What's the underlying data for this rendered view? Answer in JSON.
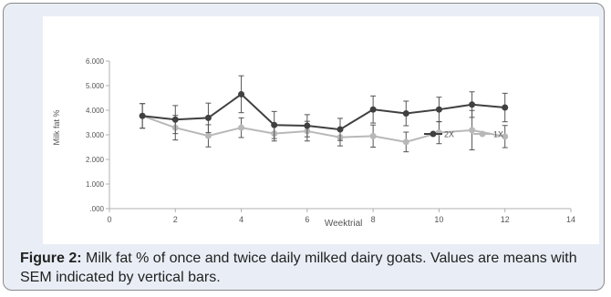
{
  "chart_data": {
    "type": "line",
    "ylabel": "Milk fat %",
    "xlabel": "Weektrial",
    "xlim": [
      0,
      14
    ],
    "ylim": [
      0,
      6
    ],
    "x_ticks": [
      0,
      2,
      4,
      6,
      8,
      10,
      12,
      14
    ],
    "y_ticks": [
      ".000",
      "1.000",
      "2.000",
      "3.000",
      "4.000",
      "5.000",
      "6.000"
    ],
    "grid": false,
    "legend_position": "right",
    "x": [
      1,
      2,
      3,
      4,
      5,
      6,
      7,
      8,
      9,
      10,
      11,
      12
    ],
    "series": [
      {
        "name": "2X",
        "color": "#404040",
        "values": [
          3.77,
          3.62,
          3.69,
          4.65,
          3.4,
          3.37,
          3.22,
          4.03,
          3.87,
          4.03,
          4.23,
          4.11
        ],
        "error": [
          0.5,
          0.57,
          0.6,
          0.75,
          0.55,
          0.45,
          0.45,
          0.55,
          0.5,
          0.5,
          0.52,
          0.58
        ]
      },
      {
        "name": "1X",
        "color": "#b8b8b8",
        "values": [
          3.77,
          3.29,
          2.96,
          3.29,
          3.05,
          3.15,
          2.9,
          2.95,
          2.71,
          3.09,
          3.19,
          2.93
        ],
        "error": [
          0.5,
          0.5,
          0.45,
          0.4,
          0.3,
          0.4,
          0.35,
          0.45,
          0.4,
          0.45,
          0.8,
          0.45
        ]
      }
    ]
  },
  "caption": {
    "label": "Figure 2:",
    "text": " Milk fat % of once and twice daily milked dairy goats. Values are means with SEM indicated by vertical bars."
  },
  "colors": {
    "panel_background": "#e9eef6",
    "axis": "#b0b0b0",
    "tick_text": "#555555"
  }
}
